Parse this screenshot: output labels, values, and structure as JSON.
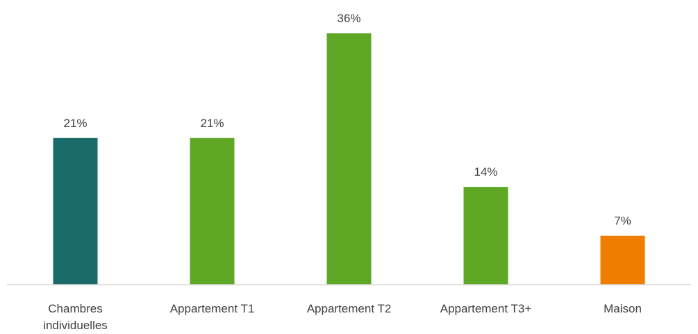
{
  "chart_data": {
    "type": "bar",
    "categories": [
      [
        "Chambres",
        "individuelles"
      ],
      [
        "Appartement T1"
      ],
      [
        "Appartement T2"
      ],
      [
        "Appartement T3+"
      ],
      [
        "Maison"
      ]
    ],
    "values": [
      21,
      21,
      36,
      14,
      7
    ],
    "data_labels": [
      "21%",
      "21%",
      "36%",
      "14%",
      "7%"
    ],
    "bar_colors": [
      "#1b6b6b",
      "#5ea826",
      "#5ea826",
      "#5ea826",
      "#ee7d00"
    ],
    "axis_color": "#d9d9d9",
    "label_color": "#404040",
    "ylim": [
      0,
      36
    ],
    "grid": false,
    "legend": "none",
    "title": "",
    "xlabel": "",
    "ylabel": ""
  }
}
